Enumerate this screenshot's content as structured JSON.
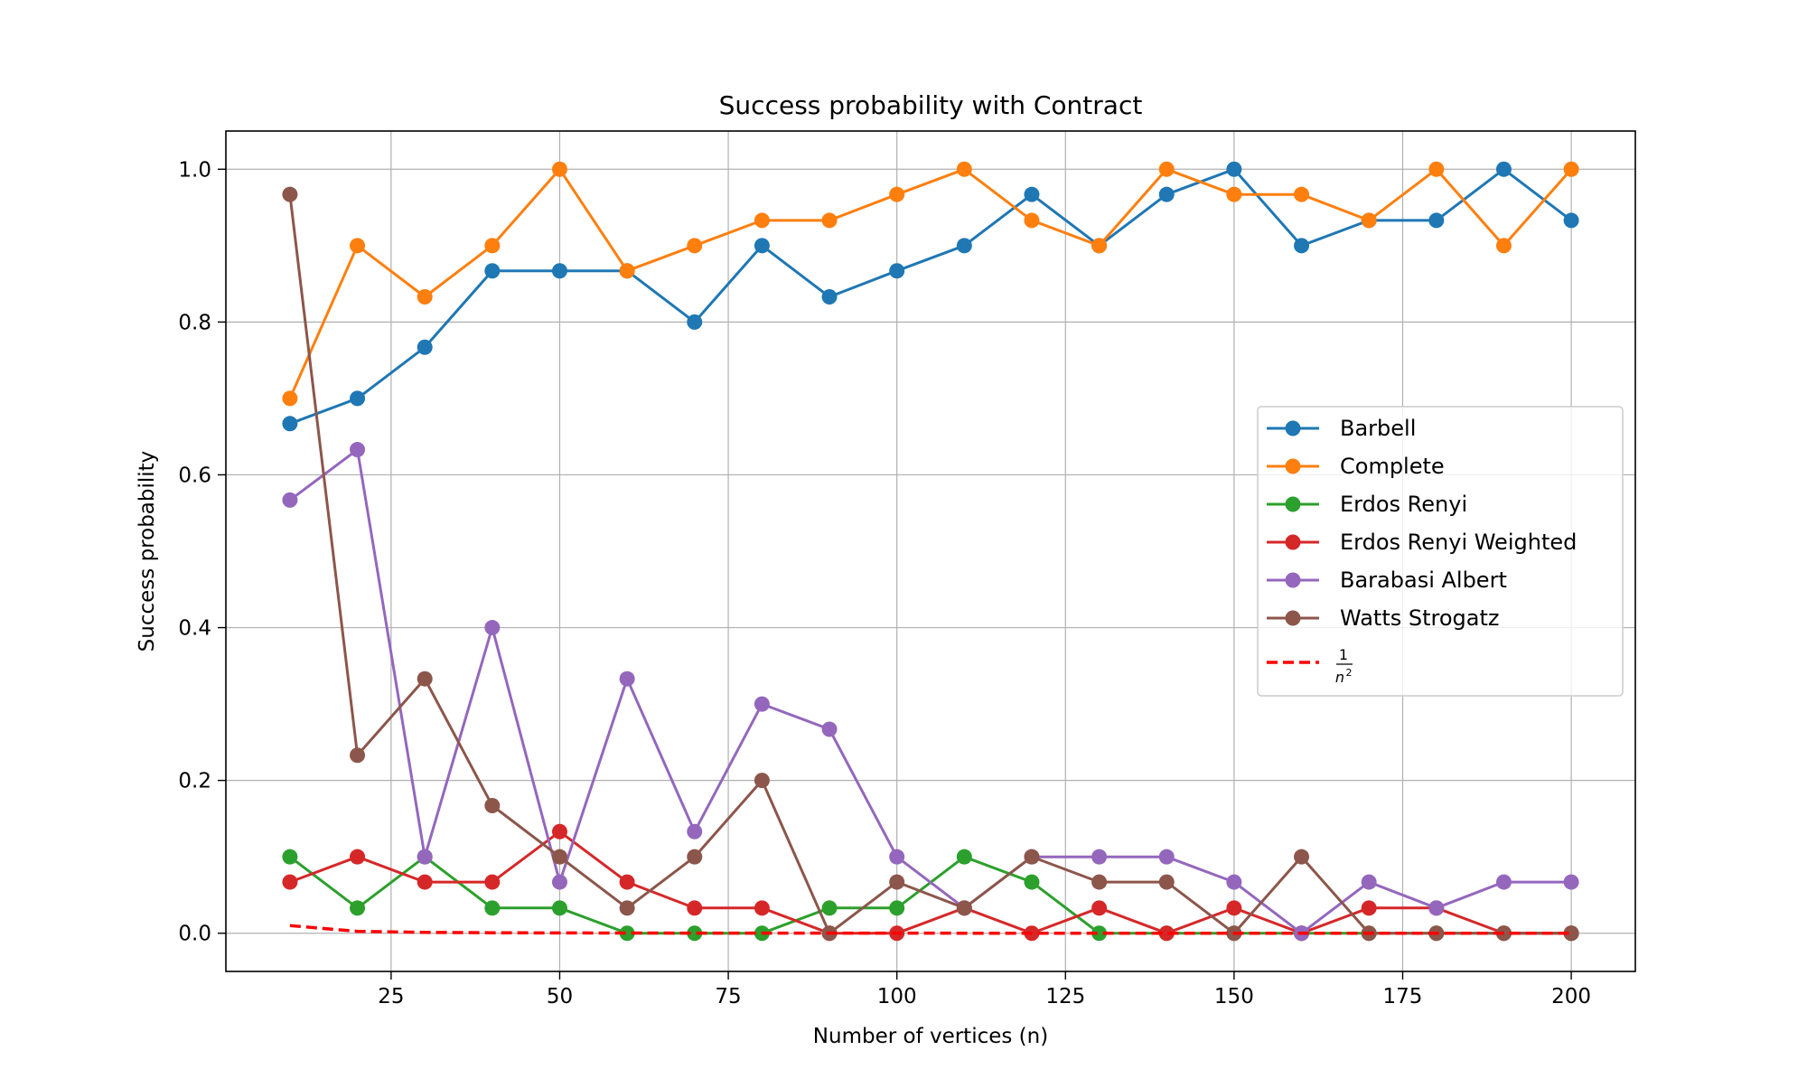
{
  "chart_data": {
    "type": "line",
    "title": "Success probability with Contract",
    "xlabel": "Number of vertices (n)",
    "ylabel": "Success probability",
    "xlim": [
      0.5,
      209.5
    ],
    "ylim": [
      -0.05,
      1.05
    ],
    "xticks": [
      25,
      50,
      75,
      100,
      125,
      150,
      175,
      200
    ],
    "xtick_labels": [
      "25",
      "50",
      "75",
      "100",
      "125",
      "150",
      "175",
      "200"
    ],
    "yticks": [
      0.0,
      0.2,
      0.4,
      0.6,
      0.8,
      1.0
    ],
    "ytick_labels": [
      "0.0",
      "0.2",
      "0.4",
      "0.6",
      "0.8",
      "1.0"
    ],
    "grid": true,
    "legend_position": "center-right",
    "x": [
      10,
      20,
      30,
      40,
      50,
      60,
      70,
      80,
      90,
      100,
      110,
      120,
      130,
      140,
      150,
      160,
      170,
      180,
      190,
      200
    ],
    "series": [
      {
        "name": "Barbell",
        "color": "#1f77b4",
        "marker": "circle",
        "values": [
          0.667,
          0.7,
          0.767,
          0.867,
          0.867,
          0.867,
          0.8,
          0.9,
          0.833,
          0.867,
          0.9,
          0.967,
          0.9,
          0.967,
          1.0,
          0.9,
          0.933,
          0.933,
          1.0,
          0.933
        ]
      },
      {
        "name": "Complete",
        "color": "#ff7f0e",
        "marker": "circle",
        "values": [
          0.7,
          0.9,
          0.833,
          0.9,
          1.0,
          0.867,
          0.9,
          0.933,
          0.933,
          0.967,
          1.0,
          0.933,
          0.9,
          1.0,
          0.967,
          0.967,
          0.933,
          1.0,
          0.9,
          1.0
        ]
      },
      {
        "name": "Erdos Renyi",
        "color": "#2ca02c",
        "marker": "circle",
        "values": [
          0.1,
          0.033,
          0.1,
          0.033,
          0.033,
          0.0,
          0.0,
          0.0,
          0.033,
          0.033,
          0.1,
          0.067,
          0.0,
          0.0,
          0.0,
          0.0,
          0.0,
          0.0,
          0.0,
          0.0
        ]
      },
      {
        "name": "Erdos Renyi Weighted",
        "color": "#d62728",
        "marker": "circle",
        "values": [
          0.067,
          0.1,
          0.067,
          0.067,
          0.133,
          0.067,
          0.033,
          0.033,
          0.0,
          0.0,
          0.033,
          0.0,
          0.033,
          0.0,
          0.033,
          0.0,
          0.033,
          0.033,
          0.0,
          0.0
        ]
      },
      {
        "name": "Barabasi Albert",
        "color": "#9467bd",
        "marker": "circle",
        "values": [
          0.567,
          0.633,
          0.1,
          0.4,
          0.067,
          0.333,
          0.133,
          0.3,
          0.267,
          0.1,
          0.033,
          0.1,
          0.1,
          0.1,
          0.067,
          0.0,
          0.067,
          0.033,
          0.067,
          0.067
        ]
      },
      {
        "name": "Watts Strogatz",
        "color": "#8c564b",
        "marker": "circle",
        "values": [
          0.967,
          0.233,
          0.333,
          0.167,
          0.1,
          0.033,
          0.1,
          0.2,
          0.0,
          0.067,
          0.033,
          0.1,
          0.067,
          0.067,
          0.0,
          0.1,
          0.0,
          0.0,
          0.0,
          0.0
        ]
      }
    ],
    "reference_curve": {
      "label_numerator": "1",
      "label_denominator": "n",
      "label_exponent": "2",
      "color": "#ff0000",
      "style": "dashed",
      "x": [
        10,
        20,
        30,
        40,
        50,
        60,
        70,
        80,
        90,
        100,
        110,
        120,
        130,
        140,
        150,
        160,
        170,
        180,
        190,
        200
      ],
      "values": [
        0.01,
        0.0025,
        0.00111,
        0.000625,
        0.0004,
        0.000278,
        0.000204,
        0.000156,
        0.000123,
        0.0001,
        8.26e-05,
        6.94e-05,
        5.92e-05,
        5.1e-05,
        4.44e-05,
        3.91e-05,
        3.46e-05,
        3.09e-05,
        2.77e-05,
        2.5e-05
      ]
    }
  }
}
